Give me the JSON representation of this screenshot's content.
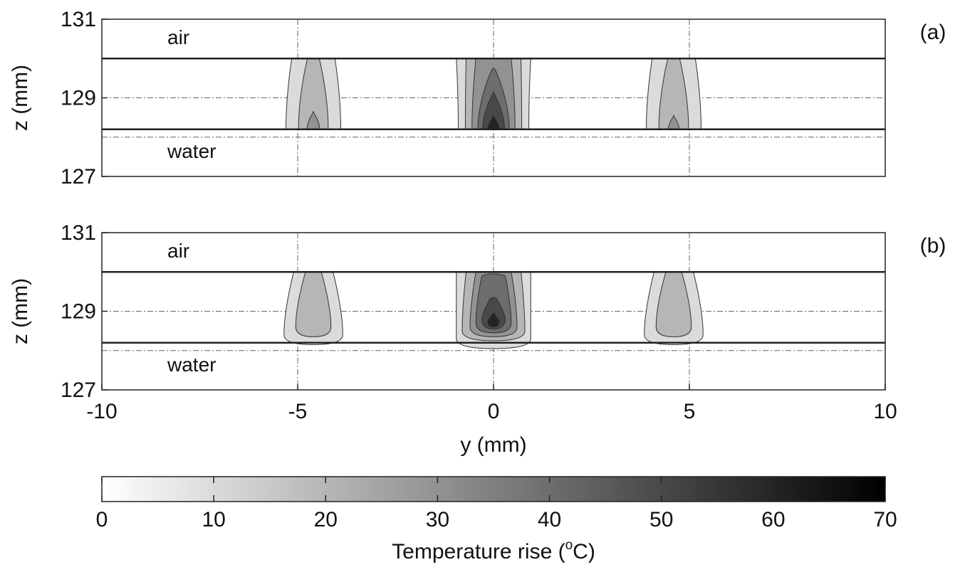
{
  "chart_data": [
    {
      "type": "contour",
      "panel_label": "(a)",
      "ylabel": "z (mm)",
      "xlim": [
        -10,
        10
      ],
      "ylim": [
        127,
        131
      ],
      "yticks": [
        127,
        129,
        131
      ],
      "vlines": [
        -5,
        0,
        5
      ],
      "hlines": [
        129,
        128
      ],
      "interfaces": [
        130,
        128.2
      ],
      "region_labels": [
        "air",
        "water"
      ],
      "bottom_shape": "flat",
      "hotspots": [
        {
          "y": -4.6,
          "contours": [
            {
              "level": 10,
              "top": 130,
              "bottom": 128.2,
              "half_width_top": 0.55,
              "half_width_bottom": 0.7
            },
            {
              "level": 20,
              "top": 130,
              "bottom": 128.2,
              "half_width_top": 0.15,
              "half_width_bottom": 0.38
            },
            {
              "level": 30,
              "top": 128.6,
              "bottom": 128.2,
              "half_width_top": 0.02,
              "half_width_bottom": 0.16
            }
          ]
        },
        {
          "y": 0,
          "contours": [
            {
              "level": 10,
              "top": 130,
              "bottom": 128.2,
              "half_width_top": 0.95,
              "half_width_bottom": 0.9
            },
            {
              "level": 20,
              "top": 130,
              "bottom": 128.2,
              "half_width_top": 0.7,
              "half_width_bottom": 0.72
            },
            {
              "level": 30,
              "top": 130,
              "bottom": 128.2,
              "half_width_top": 0.45,
              "half_width_bottom": 0.55
            },
            {
              "level": 40,
              "top": 129.7,
              "bottom": 128.2,
              "half_width_top": 0.05,
              "half_width_bottom": 0.4
            },
            {
              "level": 50,
              "top": 129.1,
              "bottom": 128.2,
              "half_width_top": 0.02,
              "half_width_bottom": 0.28
            },
            {
              "level": 60,
              "top": 128.5,
              "bottom": 128.2,
              "half_width_top": 0.02,
              "half_width_bottom": 0.15
            }
          ]
        },
        {
          "y": 4.6,
          "contours": [
            {
              "level": 10,
              "top": 130,
              "bottom": 128.2,
              "half_width_top": 0.55,
              "half_width_bottom": 0.7
            },
            {
              "level": 20,
              "top": 130,
              "bottom": 128.2,
              "half_width_top": 0.15,
              "half_width_bottom": 0.38
            },
            {
              "level": 30,
              "top": 128.5,
              "bottom": 128.2,
              "half_width_top": 0.02,
              "half_width_bottom": 0.14
            }
          ]
        }
      ]
    },
    {
      "type": "contour",
      "panel_label": "(b)",
      "ylabel": "z (mm)",
      "xlabel": "y (mm)",
      "xlim": [
        -10,
        10
      ],
      "ylim": [
        127,
        131
      ],
      "yticks": [
        127,
        129,
        131
      ],
      "xticks": [
        -10,
        -5,
        0,
        5,
        10
      ],
      "vlines": [
        -5,
        0,
        5
      ],
      "hlines": [
        129,
        128
      ],
      "interfaces": [
        130,
        128.2
      ],
      "region_labels": [
        "air",
        "water"
      ],
      "bottom_shape": "round",
      "hotspots": [
        {
          "y": -4.6,
          "contours": [
            {
              "level": 10,
              "top": 130,
              "bottom": 128.15,
              "half_width_top": 0.5,
              "half_width_bottom": 0.75
            },
            {
              "level": 20,
              "top": 130,
              "bottom": 128.35,
              "half_width_top": 0.2,
              "half_width_bottom": 0.45
            }
          ]
        },
        {
          "y": 0,
          "contours": [
            {
              "level": 10,
              "top": 130,
              "bottom": 128.05,
              "half_width_top": 0.95,
              "half_width_bottom": 0.95
            },
            {
              "level": 20,
              "top": 130,
              "bottom": 128.25,
              "half_width_top": 0.7,
              "half_width_bottom": 0.8
            },
            {
              "level": 30,
              "top": 130,
              "bottom": 128.35,
              "half_width_top": 0.45,
              "half_width_bottom": 0.6
            },
            {
              "level": 40,
              "top": 129.9,
              "bottom": 128.45,
              "half_width_top": 0.3,
              "half_width_bottom": 0.45
            },
            {
              "level": 50,
              "top": 129.3,
              "bottom": 128.55,
              "half_width_top": 0.1,
              "half_width_bottom": 0.3
            },
            {
              "level": 60,
              "top": 128.9,
              "bottom": 128.6,
              "half_width_top": 0.05,
              "half_width_bottom": 0.15
            }
          ]
        },
        {
          "y": 4.6,
          "contours": [
            {
              "level": 10,
              "top": 130,
              "bottom": 128.15,
              "half_width_top": 0.5,
              "half_width_bottom": 0.75
            },
            {
              "level": 20,
              "top": 130,
              "bottom": 128.35,
              "half_width_top": 0.2,
              "half_width_bottom": 0.45
            }
          ]
        }
      ]
    },
    {
      "type": "colorbar",
      "label_parts": [
        "Temperature rise (",
        "o",
        "C)"
      ],
      "xlim": [
        0,
        70
      ],
      "xticks": [
        0,
        10,
        20,
        30,
        40,
        50,
        60,
        70
      ]
    }
  ]
}
